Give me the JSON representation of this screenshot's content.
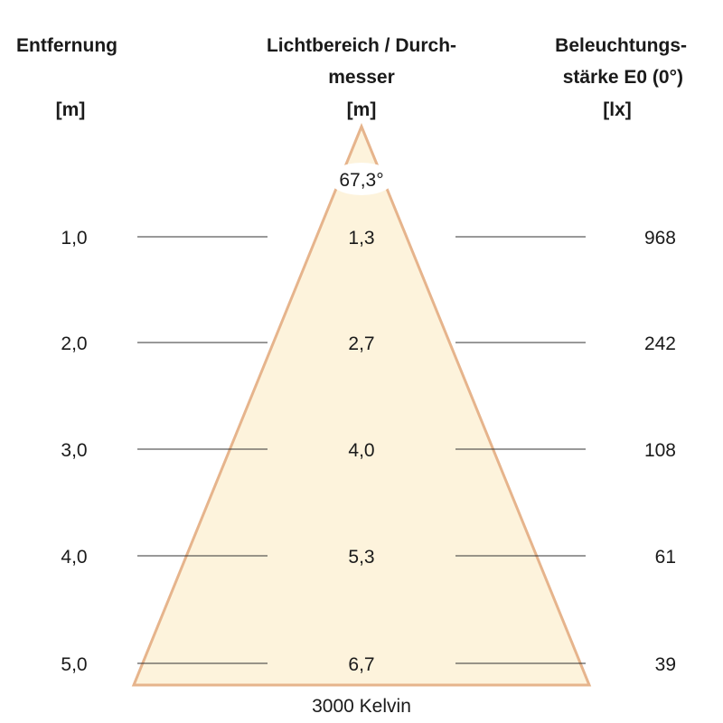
{
  "headers": {
    "distance": {
      "line1": "Entfernung",
      "unit": "[m]"
    },
    "diameter": {
      "line1": "Lichtbereich / Durch-",
      "line2": "messer",
      "unit": "[m]"
    },
    "illuminance": {
      "line1": "Beleuchtungs-",
      "line2": "stärke E0 (0°)",
      "unit": "[lx]"
    }
  },
  "beam_angle": "67,3°",
  "rows": [
    {
      "distance": "1,0",
      "diameter": "1,3",
      "illuminance": "968"
    },
    {
      "distance": "2,0",
      "diameter": "2,7",
      "illuminance": "242"
    },
    {
      "distance": "3,0",
      "diameter": "4,0",
      "illuminance": "108"
    },
    {
      "distance": "4,0",
      "diameter": "5,3",
      "illuminance": "61"
    },
    {
      "distance": "5,0",
      "diameter": "6,7",
      "illuminance": "39"
    }
  ],
  "color_temperature": "3000 Kelvin",
  "colors": {
    "cone_fill": "#fdf3dc",
    "cone_edge": "#e6b48c",
    "line": "#333333"
  }
}
